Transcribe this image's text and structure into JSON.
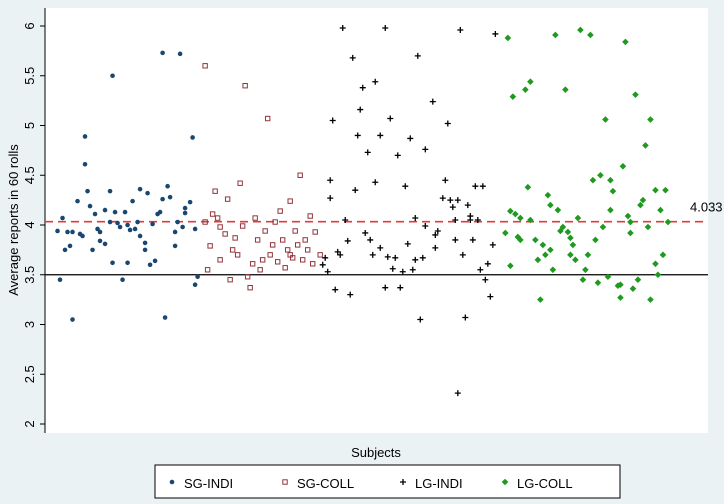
{
  "chart_data": {
    "type": "scatter",
    "y_label": "Average reports in 60 rolls",
    "x_label": "Subjects",
    "xlim": [
      0,
      265
    ],
    "ylim": [
      2,
      6
    ],
    "yticks": [
      2,
      2.5,
      3,
      3.5,
      4,
      4.5,
      5,
      5.5,
      6
    ],
    "grid": false,
    "legend": "bottom",
    "reference_lines": [
      {
        "value": 3.5,
        "color": "#000000",
        "style": "solid"
      },
      {
        "value": 4.033,
        "color": "#e03a3a",
        "style": "dashed"
      }
    ],
    "series": [
      {
        "name": "SG-INDI",
        "color": "#1a476f",
        "marker": "circle",
        "x": [
          5,
          7,
          6,
          8,
          9,
          10,
          11,
          11,
          13,
          14,
          15,
          16,
          16,
          17,
          18,
          19,
          20,
          21,
          22,
          22,
          24,
          24,
          26,
          26,
          27,
          27,
          28,
          29,
          30,
          31,
          32,
          33,
          33,
          34,
          35,
          36,
          37,
          38,
          38,
          40,
          40,
          41,
          42,
          43,
          44,
          45,
          46,
          47,
          47,
          48,
          49,
          50,
          52,
          52,
          53,
          54,
          55,
          56,
          56,
          58,
          59,
          60,
          60,
          61
        ],
        "y": [
          3.94,
          4.07,
          3.45,
          3.75,
          3.93,
          3.79,
          3.93,
          3.05,
          4.24,
          3.91,
          3.89,
          4.61,
          4.89,
          4.34,
          4.19,
          3.75,
          4.11,
          3.96,
          3.84,
          3.93,
          3.81,
          4.15,
          4.03,
          4.34,
          5.5,
          3.62,
          4.13,
          4.02,
          3.98,
          3.45,
          4.13,
          3.62,
          4.0,
          3.95,
          4.24,
          3.96,
          4.03,
          4.36,
          3.89,
          3.82,
          3.75,
          4.32,
          3.6,
          4.01,
          3.64,
          4.11,
          4.13,
          4.26,
          5.73,
          3.07,
          4.39,
          4.28,
          3.79,
          3.93,
          4.03,
          5.72,
          3.98,
          4.12,
          4.17,
          4.23,
          4.88,
          3.96,
          3.4,
          3.48
        ]
      },
      {
        "name": "SG-COLL",
        "color": "#90353b",
        "marker": "square-hollow",
        "x": [
          64,
          64,
          65,
          66,
          67,
          68,
          69,
          70,
          70,
          72,
          73,
          74,
          75,
          76,
          77,
          78,
          79,
          80,
          81,
          82,
          83,
          84,
          85,
          86,
          87,
          88,
          89,
          90,
          91,
          92,
          93,
          94,
          95,
          96,
          97,
          98,
          98,
          99,
          100,
          101,
          102,
          103,
          104,
          105,
          106,
          107,
          108,
          110
        ],
        "y": [
          4.03,
          5.6,
          3.55,
          3.79,
          4.11,
          4.34,
          4.07,
          3.65,
          3.98,
          3.91,
          4.26,
          3.45,
          3.75,
          3.87,
          3.7,
          4.42,
          3.99,
          5.4,
          3.48,
          3.37,
          3.61,
          4.07,
          3.85,
          3.55,
          3.65,
          3.94,
          5.07,
          3.7,
          3.8,
          4.03,
          3.63,
          4.14,
          3.85,
          3.57,
          3.75,
          3.7,
          4.24,
          3.67,
          3.94,
          3.8,
          4.5,
          3.65,
          3.85,
          3.75,
          4.09,
          3.61,
          3.93,
          3.7
        ]
      },
      {
        "name": "LG-INDI",
        "color": "#000000",
        "marker": "plus",
        "x": [
          111,
          112,
          113,
          114,
          114,
          115,
          116,
          117,
          118,
          119,
          120,
          121,
          122,
          123,
          124,
          125,
          126,
          127,
          128,
          129,
          130,
          131,
          132,
          132,
          134,
          134,
          136,
          136,
          137,
          138,
          139,
          140,
          141,
          142,
          143,
          144,
          145,
          146,
          147,
          148,
          148,
          149,
          150,
          151,
          152,
          155,
          156,
          156,
          157,
          159,
          160,
          161,
          162,
          163,
          164,
          164,
          165,
          166,
          167,
          168,
          169,
          170,
          170,
          171,
          172,
          173,
          174,
          175,
          176,
          177,
          178,
          179,
          180,
          165,
          152
        ],
        "y": [
          3.6,
          3.67,
          3.53,
          4.27,
          4.45,
          5.05,
          3.35,
          3.73,
          3.7,
          5.98,
          4.05,
          3.84,
          3.3,
          5.68,
          4.35,
          4.9,
          5.16,
          5.38,
          3.92,
          4.73,
          3.85,
          3.7,
          5.44,
          4.43,
          4.9,
          3.77,
          3.37,
          5.98,
          3.68,
          5.07,
          3.56,
          3.67,
          4.7,
          3.37,
          3.53,
          4.39,
          3.81,
          4.87,
          3.55,
          4.07,
          3.65,
          5.7,
          3.05,
          3.67,
          3.99,
          5.24,
          3.77,
          3.9,
          3.94,
          4.27,
          4.45,
          5.02,
          4.25,
          4.18,
          3.85,
          4.05,
          4.25,
          5.96,
          3.7,
          3.07,
          4.2,
          4.09,
          4.05,
          3.85,
          4.39,
          4.05,
          3.55,
          4.39,
          3.45,
          3.61,
          3.28,
          3.8,
          5.92,
          2.31,
          4.76
        ]
      },
      {
        "name": "LG-COLL",
        "color": "#1f9a1f",
        "marker": "diamond",
        "x": [
          184,
          185,
          186,
          186,
          187,
          188,
          189,
          190,
          190,
          192,
          193,
          194,
          194,
          196,
          197,
          198,
          199,
          200,
          201,
          202,
          202,
          203,
          204,
          205,
          206,
          207,
          208,
          209,
          210,
          210,
          211,
          212,
          213,
          214,
          215,
          216,
          217,
          218,
          219,
          220,
          221,
          222,
          223,
          224,
          225,
          226,
          226,
          227,
          229,
          230,
          230,
          231,
          232,
          233,
          234,
          234,
          235,
          236,
          237,
          238,
          239,
          240,
          241,
          242,
          242,
          244,
          244,
          245,
          246,
          247,
          248,
          249
        ],
        "y": [
          3.92,
          5.88,
          3.59,
          4.14,
          5.29,
          4.11,
          3.88,
          4.07,
          3.85,
          5.36,
          4.38,
          4.05,
          5.44,
          3.85,
          3.65,
          3.25,
          3.8,
          3.7,
          4.3,
          3.75,
          4.2,
          3.55,
          5.91,
          4.15,
          3.94,
          3.98,
          5.36,
          3.93,
          3.87,
          3.7,
          3.8,
          3.65,
          4.07,
          5.96,
          3.45,
          3.55,
          3.7,
          5.91,
          4.45,
          3.85,
          3.42,
          4.5,
          3.98,
          5.06,
          3.48,
          4.45,
          4.15,
          4.34,
          3.39,
          3.27,
          3.4,
          4.59,
          5.84,
          4.09,
          3.92,
          4.03,
          3.36,
          5.31,
          3.45,
          4.2,
          4.25,
          4.8,
          3.98,
          3.25,
          5.06,
          3.61,
          4.35,
          3.5,
          4.15,
          3.7,
          4.35,
          4.03
        ]
      }
    ]
  }
}
